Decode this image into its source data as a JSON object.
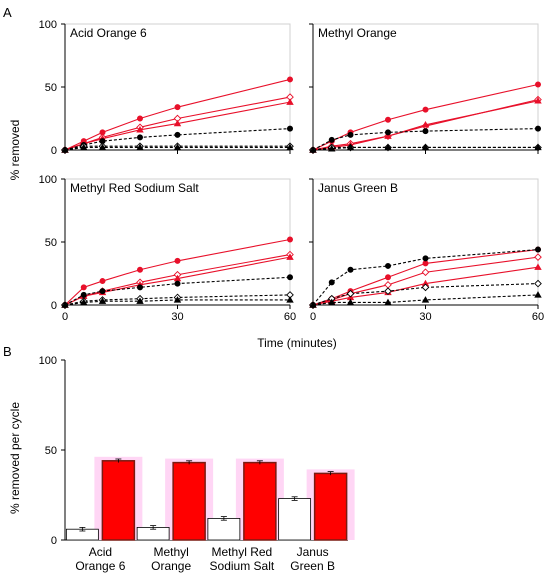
{
  "figure": {
    "panel_a_label": "A",
    "panel_b_label": "B",
    "a_ylabel": "% removed",
    "a_xlabel": "Time (minutes)",
    "b_ylabel": "% removed per cycle"
  },
  "colors": {
    "red": "#e8102a",
    "black": "#000000",
    "bar_fill": "#ff0000",
    "bar_edge": "#7a1a12",
    "bar_shadow": "#ffd6f5",
    "white_bar": "#ffffff"
  },
  "chart_data": [
    {
      "type": "line",
      "title": "Acid Orange 6",
      "x_ticks": [
        0,
        30,
        60
      ],
      "y_ticks": [
        0,
        50,
        100
      ],
      "xlim": [
        0,
        60
      ],
      "ylim": [
        0,
        100
      ],
      "series": [
        {
          "style": "red-solid",
          "marker": "circle-filled",
          "x": [
            0,
            5,
            10,
            20,
            30,
            60
          ],
          "y": [
            0,
            7,
            14,
            25,
            34,
            56
          ]
        },
        {
          "style": "red-solid",
          "marker": "diamond-open",
          "x": [
            0,
            5,
            10,
            20,
            30,
            60
          ],
          "y": [
            0,
            5,
            10,
            18,
            25,
            42
          ]
        },
        {
          "style": "red-solid",
          "marker": "triangle-filled",
          "x": [
            0,
            5,
            10,
            20,
            30,
            60
          ],
          "y": [
            0,
            5,
            9,
            16,
            21,
            38
          ]
        },
        {
          "style": "black-dashed",
          "marker": "circle-filled",
          "x": [
            0,
            5,
            10,
            20,
            30,
            60
          ],
          "y": [
            0,
            4,
            7,
            10,
            12,
            17
          ]
        },
        {
          "style": "black-dashed",
          "marker": "diamond-open",
          "x": [
            0,
            5,
            10,
            20,
            30,
            60
          ],
          "y": [
            0,
            3,
            3,
            3,
            3,
            3
          ]
        },
        {
          "style": "black-dashed",
          "marker": "triangle-filled",
          "x": [
            0,
            5,
            10,
            20,
            30,
            60
          ],
          "y": [
            0,
            2,
            2,
            2,
            2,
            2
          ]
        }
      ]
    },
    {
      "type": "line",
      "title": "Methyl Orange",
      "x_ticks": [
        0,
        30,
        60
      ],
      "y_ticks": [
        0,
        50,
        100
      ],
      "xlim": [
        0,
        60
      ],
      "ylim": [
        0,
        100
      ],
      "series": [
        {
          "style": "red-solid",
          "marker": "circle-filled",
          "x": [
            0,
            5,
            10,
            20,
            30,
            60
          ],
          "y": [
            0,
            7,
            14,
            24,
            32,
            52
          ]
        },
        {
          "style": "red-solid",
          "marker": "diamond-open",
          "x": [
            0,
            5,
            10,
            20,
            30,
            60
          ],
          "y": [
            0,
            3,
            5,
            11,
            19,
            40
          ]
        },
        {
          "style": "red-solid",
          "marker": "triangle-filled",
          "x": [
            0,
            5,
            10,
            20,
            30,
            60
          ],
          "y": [
            0,
            2,
            4,
            11,
            20,
            39
          ]
        },
        {
          "style": "black-dashed",
          "marker": "circle-filled",
          "x": [
            0,
            5,
            10,
            20,
            30,
            60
          ],
          "y": [
            0,
            8,
            12,
            14,
            15,
            17
          ]
        },
        {
          "style": "black-dashed",
          "marker": "diamond-open",
          "x": [
            0,
            5,
            10,
            20,
            30,
            60
          ],
          "y": [
            0,
            2,
            2,
            2,
            2,
            2
          ]
        },
        {
          "style": "black-dashed",
          "marker": "triangle-filled",
          "x": [
            0,
            5,
            10,
            20,
            30,
            60
          ],
          "y": [
            0,
            1,
            2,
            2,
            2,
            2
          ]
        }
      ]
    },
    {
      "type": "line",
      "title": "Methyl Red Sodium Salt",
      "x_ticks": [
        0,
        30,
        60
      ],
      "y_ticks": [
        0,
        50,
        100
      ],
      "xlim": [
        0,
        60
      ],
      "ylim": [
        0,
        100
      ],
      "series": [
        {
          "style": "red-solid",
          "marker": "circle-filled",
          "x": [
            0,
            5,
            10,
            20,
            30,
            60
          ],
          "y": [
            0,
            14,
            19,
            28,
            35,
            52
          ]
        },
        {
          "style": "red-solid",
          "marker": "diamond-open",
          "x": [
            0,
            5,
            10,
            20,
            30,
            60
          ],
          "y": [
            0,
            7,
            11,
            18,
            24,
            40
          ]
        },
        {
          "style": "red-solid",
          "marker": "triangle-filled",
          "x": [
            0,
            5,
            10,
            20,
            30,
            60
          ],
          "y": [
            0,
            7,
            10,
            16,
            21,
            38
          ]
        },
        {
          "style": "black-dashed",
          "marker": "circle-filled",
          "x": [
            0,
            5,
            10,
            20,
            30,
            60
          ],
          "y": [
            0,
            8,
            11,
            14,
            17,
            22
          ]
        },
        {
          "style": "black-dashed",
          "marker": "diamond-open",
          "x": [
            0,
            5,
            10,
            20,
            30,
            60
          ],
          "y": [
            0,
            3,
            4,
            5,
            6,
            8
          ]
        },
        {
          "style": "black-dashed",
          "marker": "triangle-filled",
          "x": [
            0,
            5,
            10,
            20,
            30,
            60
          ],
          "y": [
            0,
            2,
            3,
            3,
            4,
            4
          ]
        }
      ]
    },
    {
      "type": "line",
      "title": "Janus Green B",
      "x_ticks": [
        0,
        30,
        60
      ],
      "y_ticks": [
        0,
        50,
        100
      ],
      "xlim": [
        0,
        60
      ],
      "ylim": [
        0,
        100
      ],
      "series": [
        {
          "style": "red-solid",
          "marker": "circle-filled",
          "x": [
            0,
            5,
            10,
            20,
            30,
            60
          ],
          "y": [
            0,
            5,
            11,
            22,
            33,
            44
          ]
        },
        {
          "style": "red-solid",
          "marker": "diamond-open",
          "x": [
            0,
            5,
            10,
            20,
            30,
            60
          ],
          "y": [
            0,
            4,
            9,
            16,
            26,
            38
          ]
        },
        {
          "style": "red-solid",
          "marker": "triangle-filled",
          "x": [
            0,
            5,
            10,
            20,
            30,
            60
          ],
          "y": [
            0,
            3,
            6,
            10,
            17,
            30
          ]
        },
        {
          "style": "black-dashed",
          "marker": "circle-filled",
          "x": [
            0,
            5,
            10,
            20,
            30,
            60
          ],
          "y": [
            0,
            18,
            28,
            31,
            37,
            44
          ]
        },
        {
          "style": "black-dashed",
          "marker": "diamond-open",
          "x": [
            0,
            5,
            10,
            20,
            30,
            60
          ],
          "y": [
            0,
            5,
            9,
            11,
            14,
            17
          ]
        },
        {
          "style": "black-dashed",
          "marker": "triangle-filled",
          "x": [
            0,
            5,
            10,
            20,
            30,
            60
          ],
          "y": [
            0,
            2,
            2,
            2,
            4,
            8
          ]
        }
      ]
    },
    {
      "type": "bar",
      "categories": [
        [
          "Acid",
          "Orange 6"
        ],
        [
          "Methyl",
          "Orange"
        ],
        [
          "Methyl Red",
          "Sodium Salt"
        ],
        [
          "Janus",
          "Green B"
        ]
      ],
      "y_ticks": [
        0,
        50,
        100
      ],
      "ylim": [
        0,
        100
      ],
      "series": [
        {
          "style": "white-bar",
          "values": [
            6,
            7,
            12,
            23
          ],
          "errors": [
            1,
            1,
            1,
            1
          ]
        },
        {
          "style": "red-bar",
          "values": [
            44,
            43,
            43,
            37
          ],
          "errors": [
            1,
            1,
            1,
            1
          ]
        }
      ]
    }
  ]
}
